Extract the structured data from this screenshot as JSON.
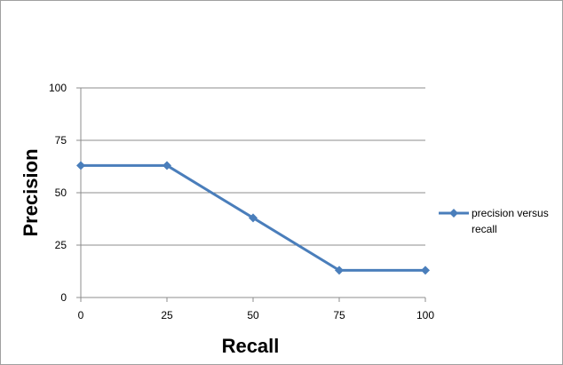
{
  "chart_data": {
    "type": "line",
    "title": "",
    "xlabel": "Recall",
    "ylabel": "Precision",
    "x": [
      0,
      25,
      50,
      75,
      100
    ],
    "xlim": [
      0,
      100
    ],
    "ylim": [
      0,
      100
    ],
    "xticks": [
      "0",
      "25",
      "50",
      "75",
      "100"
    ],
    "yticks": [
      "0",
      "25",
      "50",
      "75",
      "100"
    ],
    "grid": true,
    "legend_position": "right",
    "series": [
      {
        "name_lines": [
          "precision versus",
          "recall"
        ],
        "values": [
          63,
          63,
          38,
          13,
          13
        ],
        "color": "#4a7ebb",
        "marker": "diamond"
      }
    ]
  }
}
